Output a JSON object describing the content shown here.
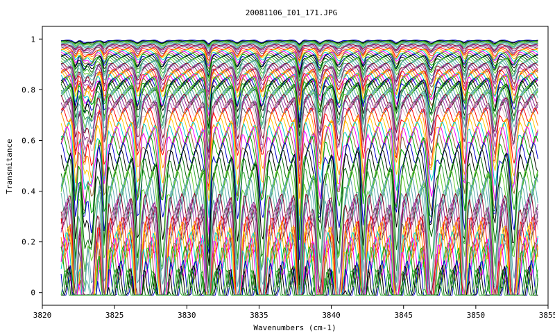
{
  "chart_data": {
    "type": "line",
    "title": "20081106_I01_171.JPG",
    "xlabel": "Wavenumbers (cm-1)",
    "ylabel": "Transmitance",
    "xlim": [
      3820,
      3855
    ],
    "ylim": [
      -0.05,
      1.05
    ],
    "x_ticks": [
      3820,
      3825,
      3830,
      3835,
      3840,
      3845,
      3850,
      3855
    ],
    "y_ticks": [
      0,
      0.2,
      0.4,
      0.6,
      0.8,
      1
    ],
    "x_range": [
      3821.3,
      3854.3
    ],
    "absorption_lines_cm1": [
      3822.3,
      3822.9,
      3823.4,
      3824.3,
      3826.6,
      3828.3,
      3831.5,
      3833.5,
      3835.2,
      3837.8,
      3839.2,
      3840.5,
      3842.2,
      3844.5,
      3846.9,
      3849.2,
      3851.3,
      3852.6
    ],
    "series_colors": [
      "#0000cc",
      "#000000",
      "#006600",
      "#33aa33",
      "#66cc33",
      "#5599aa",
      "#55aaaa",
      "#66bbaa",
      "#880022",
      "#882288",
      "#aa44aa",
      "#555555",
      "#e8b0c8",
      "#ff0000",
      "#ff8800",
      "#ffcc00",
      "#00cccc",
      "#ff00ff",
      "#996633",
      "#00aa00"
    ],
    "series": [
      {
        "baseline": 0.995
      },
      {
        "baseline": 0.993
      },
      {
        "baseline": 0.991
      },
      {
        "baseline": 0.989
      },
      {
        "baseline": 0.987
      },
      {
        "baseline": 0.985
      },
      {
        "baseline": 0.983
      },
      {
        "baseline": 0.98
      },
      {
        "baseline": 0.977
      },
      {
        "baseline": 0.974
      },
      {
        "baseline": 0.971
      },
      {
        "baseline": 0.968
      },
      {
        "baseline": 0.965
      },
      {
        "baseline": 0.962
      },
      {
        "baseline": 0.958
      },
      {
        "baseline": 0.954
      },
      {
        "baseline": 0.95
      },
      {
        "baseline": 0.946
      },
      {
        "baseline": 0.942
      },
      {
        "baseline": 0.938
      },
      {
        "baseline": 0.934
      },
      {
        "baseline": 0.93
      },
      {
        "baseline": 0.925
      },
      {
        "baseline": 0.92
      },
      {
        "baseline": 0.915
      },
      {
        "baseline": 0.91
      },
      {
        "baseline": 0.905
      },
      {
        "baseline": 0.9
      },
      {
        "baseline": 0.895
      },
      {
        "baseline": 0.89
      },
      {
        "baseline": 0.885
      },
      {
        "baseline": 0.88
      },
      {
        "baseline": 0.875
      },
      {
        "baseline": 0.87
      },
      {
        "baseline": 0.864
      },
      {
        "baseline": 0.858
      },
      {
        "baseline": 0.852
      },
      {
        "baseline": 0.846
      },
      {
        "baseline": 0.84
      },
      {
        "baseline": 0.834
      },
      {
        "baseline": 0.828
      },
      {
        "baseline": 0.82
      },
      {
        "baseline": 0.812
      },
      {
        "baseline": 0.804
      },
      {
        "baseline": 0.796
      },
      {
        "baseline": 0.788
      },
      {
        "baseline": 0.78
      },
      {
        "baseline": 0.77
      },
      {
        "baseline": 0.76
      },
      {
        "baseline": 0.75
      },
      {
        "baseline": 0.74
      },
      {
        "baseline": 0.73
      },
      {
        "baseline": 0.72
      },
      {
        "baseline": 0.7
      },
      {
        "baseline": 0.68
      },
      {
        "baseline": 0.66
      },
      {
        "baseline": 0.64
      },
      {
        "baseline": 0.62
      },
      {
        "baseline": 0.6
      },
      {
        "baseline": 0.58
      },
      {
        "baseline": 0.55
      },
      {
        "baseline": 0.52
      },
      {
        "baseline": 0.49
      },
      {
        "baseline": 0.46
      },
      {
        "baseline": 0.43
      },
      {
        "baseline": 0.4
      },
      {
        "baseline": 0.37
      },
      {
        "baseline": 0.35
      },
      {
        "baseline": 0.33
      },
      {
        "baseline": 0.31
      },
      {
        "baseline": 0.29
      },
      {
        "baseline": 0.27
      },
      {
        "baseline": 0.25
      },
      {
        "baseline": 0.23
      },
      {
        "baseline": 0.21
      },
      {
        "baseline": 0.19
      },
      {
        "baseline": 0.165
      },
      {
        "baseline": 0.14
      },
      {
        "baseline": 0.12
      },
      {
        "baseline": 0.1
      },
      {
        "baseline": 0.04
      },
      {
        "baseline": 0.02
      },
      {
        "baseline": 0.005
      },
      {
        "baseline": 0.0
      }
    ]
  }
}
